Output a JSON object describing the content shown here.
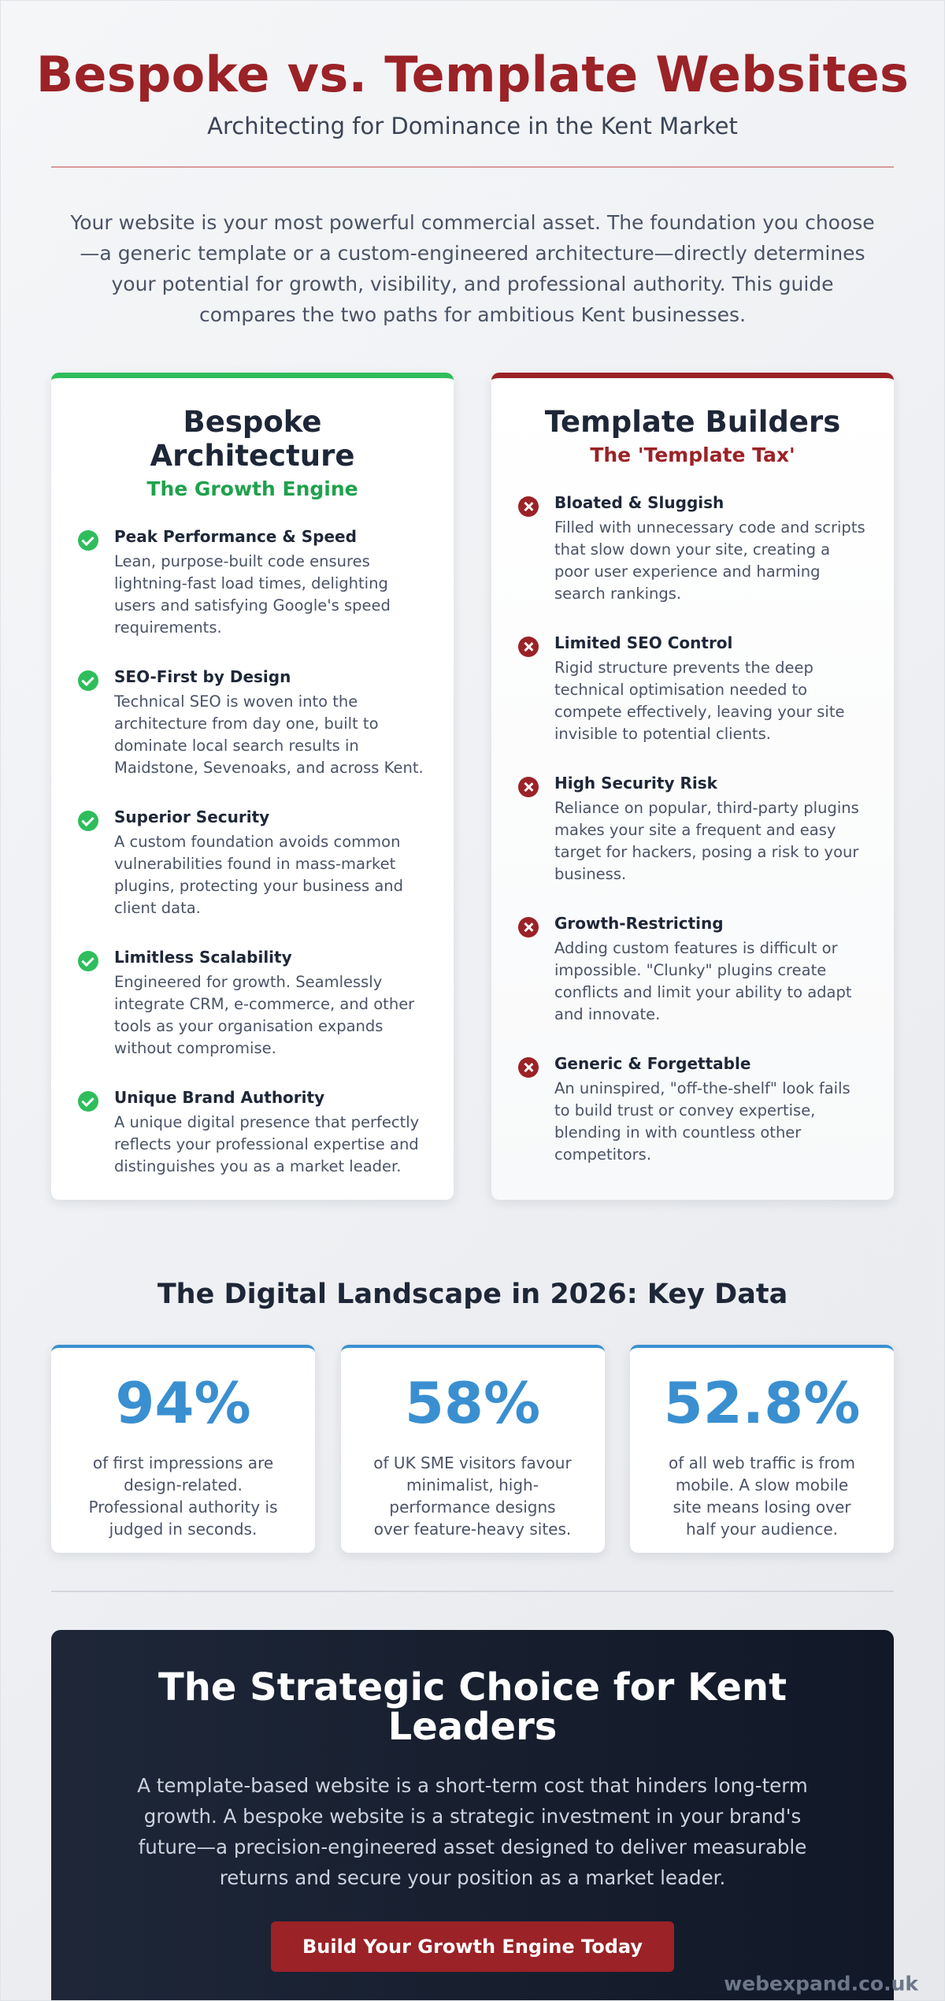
{
  "header": {
    "title": "Bespoke vs. Template Websites",
    "subtitle": "Architecting for Dominance in the Kent Market"
  },
  "intro": "Your website is your most powerful commercial asset. The foundation you choose—a generic template or a custom-engineered architecture—directly determines your potential for growth, visibility, and professional authority. This guide compares the two paths for ambitious Kent businesses.",
  "bespoke": {
    "title": "Bespoke Architecture",
    "subtitle": "The Growth Engine",
    "icon": "check-circle-icon",
    "accent": "#2fbd5c",
    "items": [
      {
        "title": "Peak Performance & Speed",
        "text": "Lean, purpose-built code ensures lightning-fast load times, delighting users and satisfying Google's speed requirements."
      },
      {
        "title": "SEO-First by Design",
        "text": "Technical SEO is woven into the architecture from day one, built to dominate local search results in Maidstone, Sevenoaks, and across Kent."
      },
      {
        "title": "Superior Security",
        "text": "A custom foundation avoids common vulnerabilities found in mass-market plugins, protecting your business and client data."
      },
      {
        "title": "Limitless Scalability",
        "text": "Engineered for growth. Seamlessly integrate CRM, e-commerce, and other tools as your organisation expands without compromise."
      },
      {
        "title": "Unique Brand Authority",
        "text": "A unique digital presence that perfectly reflects your professional expertise and distinguishes you as a market leader."
      }
    ]
  },
  "template": {
    "title": "Template Builders",
    "subtitle": "The 'Template Tax'",
    "icon": "x-circle-icon",
    "accent": "#9b2226",
    "items": [
      {
        "title": "Bloated & Sluggish",
        "text": "Filled with unnecessary code and scripts that slow down your site, creating a poor user experience and harming search rankings."
      },
      {
        "title": "Limited SEO Control",
        "text": "Rigid structure prevents the deep technical optimisation needed to compete effectively, leaving your site invisible to potential clients."
      },
      {
        "title": "High Security Risk",
        "text": "Reliance on popular, third-party plugins makes your site a frequent and easy target for hackers, posing a risk to your business."
      },
      {
        "title": "Growth-Restricting",
        "text": "Adding custom features is difficult or impossible. \"Clunky\" plugins create conflicts and limit your ability to adapt and innovate."
      },
      {
        "title": "Generic & Forgettable",
        "text": "An uninspired, \"off-the-shelf\" look fails to build trust or convey expertise, blending in with countless other competitors."
      }
    ]
  },
  "data_section": {
    "title": "The Digital Landscape in 2026: Key Data",
    "accent": "#3a8fd0",
    "stats": [
      {
        "value": "94%",
        "text": "of first impressions are design-related. Professional authority is judged in seconds."
      },
      {
        "value": "58%",
        "text": "of UK SME visitors favour minimalist, high-performance designs over feature-heavy sites."
      },
      {
        "value": "52.8%",
        "text": "of all web traffic is from mobile. A slow mobile site means losing over half your audience."
      }
    ]
  },
  "cta": {
    "title": "The Strategic Choice for Kent Leaders",
    "text": "A template-based website is a short-term cost that hinders long-term growth. A bespoke website is a strategic investment in your brand's future—a precision-engineered asset designed to deliver measurable returns and secure your position as a market leader.",
    "button_label": "Build Your Growth Engine Today"
  },
  "footer": {
    "url": "webexpand.co.uk"
  }
}
